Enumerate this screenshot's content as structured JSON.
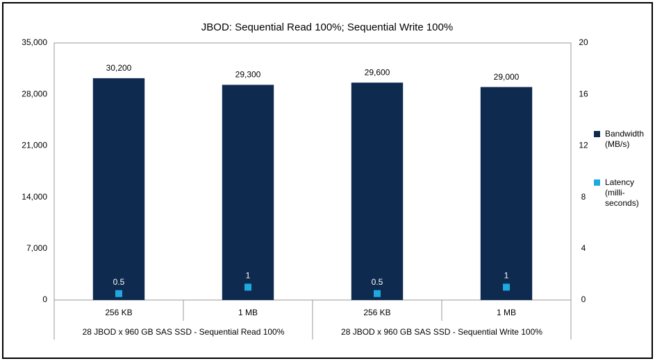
{
  "chart_data": {
    "type": "bar",
    "title": "JBOD: Sequential Read 100%; Sequential Write 100%",
    "categories": [
      "256 KB",
      "1 MB",
      "256 KB",
      "1 MB"
    ],
    "groups": [
      "28 JBOD x 960 GB SAS SSD - Sequential Read 100%",
      "28 JBOD x 960 GB SAS SSD - Sequential Write 100%"
    ],
    "series": [
      {
        "name": "Bandwidth (MB/s)",
        "type": "bar",
        "color": "#0f2a4f",
        "values": [
          30200,
          29300,
          29600,
          29000
        ],
        "value_labels": [
          "30,200",
          "29,300",
          "29,600",
          "29,000"
        ]
      },
      {
        "name": "Latency (milli-seconds)",
        "type": "scatter",
        "axis": "y2",
        "color": "#1ea9e1",
        "values": [
          0.5,
          1,
          0.5,
          1
        ]
      }
    ],
    "ylim": [
      0,
      35000
    ],
    "yticks": [
      0,
      {
        "value": 7000,
        "label": "7,000"
      },
      {
        "value": 14000,
        "label": "14,000"
      },
      {
        "value": 21000,
        "label": "21,000"
      },
      {
        "value": 28000,
        "label": "28,000"
      },
      {
        "value": 35000,
        "label": "35,000"
      }
    ],
    "y2lim": [
      0,
      20
    ],
    "y2ticks": [
      0,
      4,
      8,
      12,
      16,
      20
    ],
    "grid": false,
    "legend": "right"
  }
}
